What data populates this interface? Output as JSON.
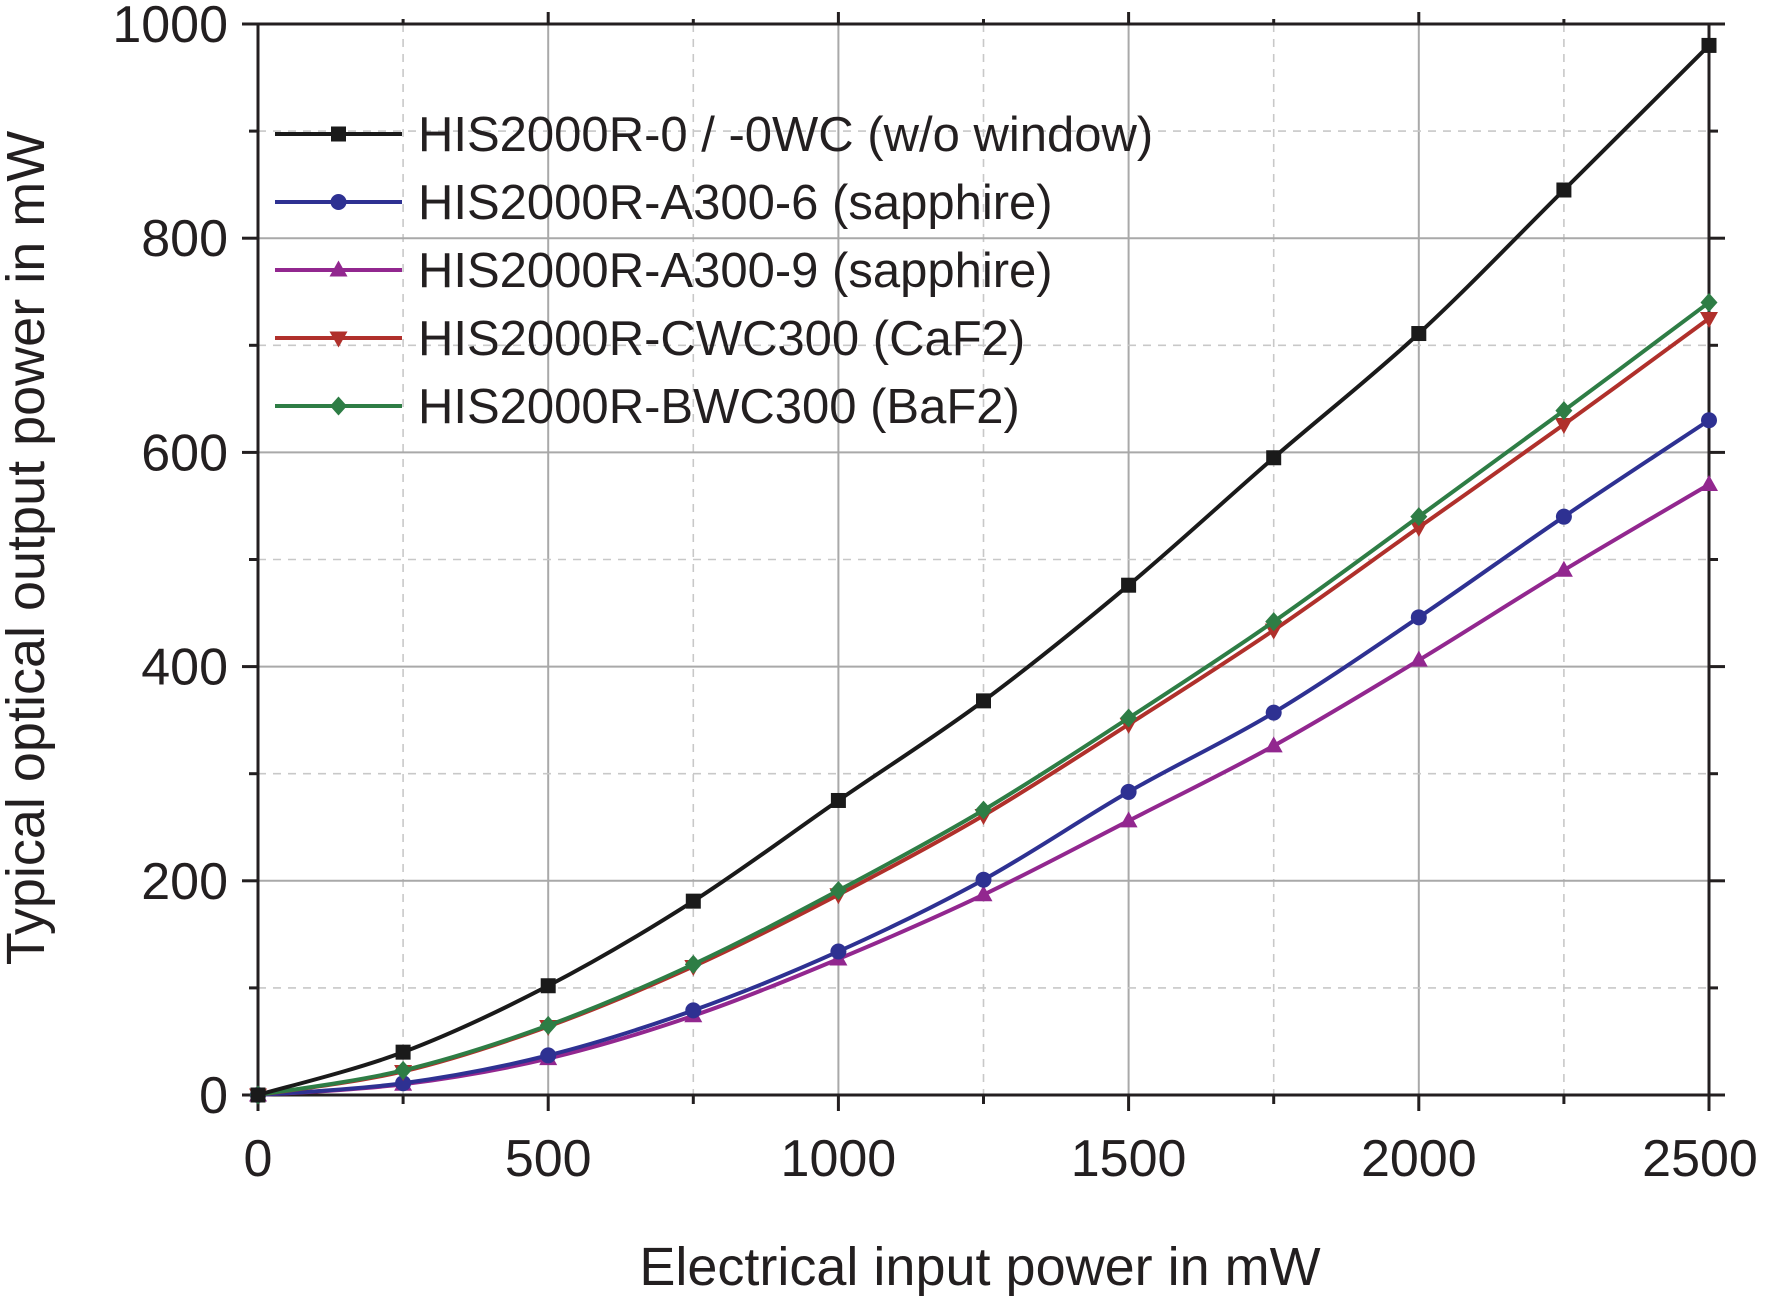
{
  "chart_data": {
    "type": "line",
    "title": "",
    "xlabel": "Electrical input power in mW",
    "ylabel": "Typical optical output power in mW",
    "xlim": [
      0,
      2500
    ],
    "ylim": [
      0,
      1000
    ],
    "xticks": [
      "0",
      "500",
      "1000",
      "1500",
      "2000",
      "2500"
    ],
    "yticks": [
      "0",
      "200",
      "400",
      "600",
      "800",
      "1000"
    ],
    "grid": true,
    "legend_position": "top-left",
    "x": [
      0,
      250,
      500,
      750,
      1000,
      1250,
      1500,
      1750,
      2000,
      2250,
      2500
    ],
    "series": [
      {
        "name": "HIS2000R-0 / -0WC (w/o window)",
        "color": "#1a1a1a",
        "marker": "square",
        "values": [
          0,
          40,
          102,
          181,
          275,
          368,
          476,
          595,
          711,
          845,
          980
        ]
      },
      {
        "name": "HIS2000R-A300-6 (sapphire)",
        "color": "#2e3192",
        "marker": "circle",
        "values": [
          0,
          11,
          37,
          79,
          134,
          201,
          283,
          357,
          446,
          540,
          630
        ]
      },
      {
        "name": "HIS2000R-A300-9 (sapphire)",
        "color": "#92278f",
        "marker": "triangle-up",
        "values": [
          0,
          10,
          34,
          74,
          127,
          187,
          256,
          326,
          406,
          490,
          570
        ]
      },
      {
        "name": "HIS2000R-CWC300 (CaF2)",
        "color": "#b0302b",
        "marker": "triangle-down",
        "values": [
          0,
          22,
          64,
          120,
          187,
          261,
          346,
          434,
          530,
          626,
          725
        ]
      },
      {
        "name": "HIS2000R-BWC300 (BaF2)",
        "color": "#2e7d45",
        "marker": "diamond",
        "values": [
          0,
          23,
          65,
          122,
          191,
          266,
          352,
          442,
          540,
          639,
          740
        ]
      }
    ]
  }
}
